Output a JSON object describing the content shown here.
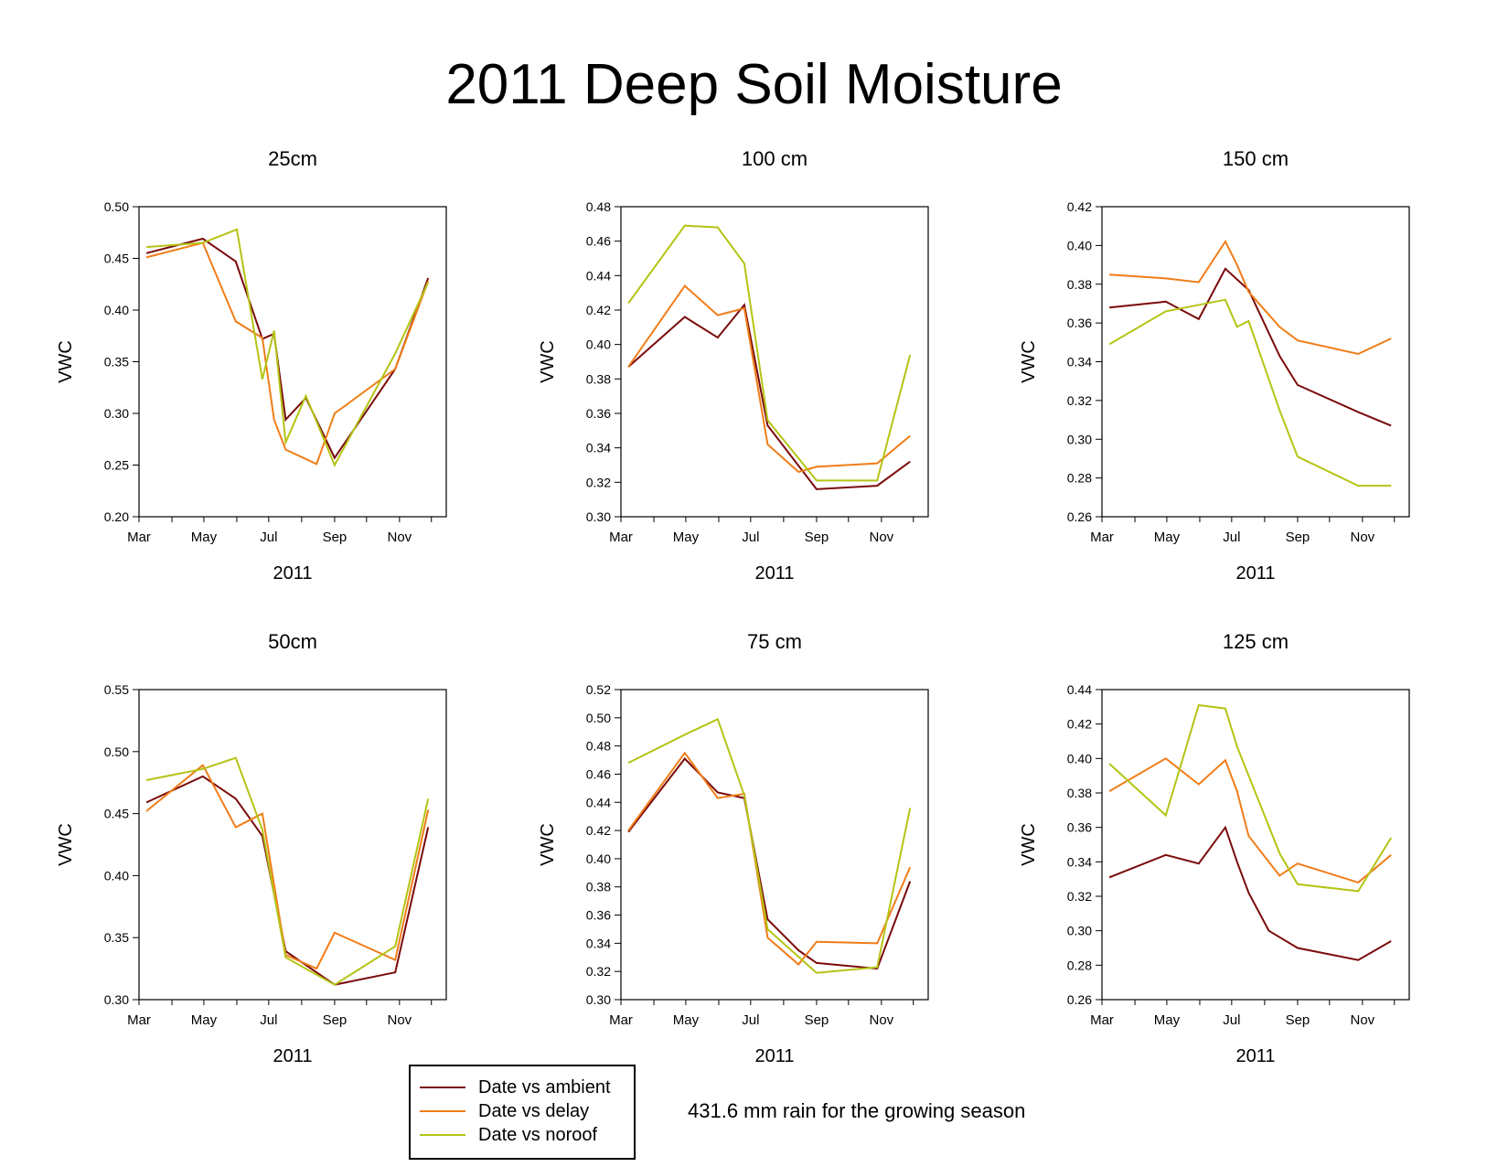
{
  "title": "2011 Deep Soil Moisture",
  "note": "431.6 mm rain for the growing season",
  "colors": {
    "ambient": "#7a0a0a",
    "delay": "#f07d18",
    "noroof": "#b4c414"
  },
  "legend": [
    {
      "label": "Date vs ambient",
      "color": "#7a0a0a"
    },
    {
      "label": "Date vs delay",
      "color": "#f07d18"
    },
    {
      "label": "Date vs noroof",
      "color": "#b4c414"
    }
  ],
  "chart_data": [
    {
      "type": "line",
      "panel": "top-left",
      "title": "25cm",
      "xlabel": "2011",
      "ylabel": "VWC",
      "xticks": [
        "Mar",
        "May",
        "Jul",
        "Sep",
        "Nov"
      ],
      "xlim": [
        "2011-03-01",
        "2011-12-15"
      ],
      "ylim": [
        0.2,
        0.5
      ],
      "yticks": [
        "0.20",
        "0.25",
        "0.30",
        "0.35",
        "0.40",
        "0.45",
        "0.50"
      ],
      "series": [
        {
          "name": "Date vs ambient",
          "color": "#7a0a0a",
          "points": [
            [
              "2011-03-08",
              0.455
            ],
            [
              "2011-04-30",
              0.469
            ],
            [
              "2011-05-31",
              0.447
            ],
            [
              "2011-06-25",
              0.372
            ],
            [
              "2011-07-06",
              0.377
            ],
            [
              "2011-07-17",
              0.294
            ],
            [
              "2011-08-05",
              0.315
            ],
            [
              "2011-09-01",
              0.257
            ],
            [
              "2011-10-28",
              0.343
            ],
            [
              "2011-11-28",
              0.431
            ]
          ]
        },
        {
          "name": "Date vs delay",
          "color": "#f07d18",
          "points": [
            [
              "2011-03-08",
              0.451
            ],
            [
              "2011-04-30",
              0.465
            ],
            [
              "2011-05-31",
              0.389
            ],
            [
              "2011-06-25",
              0.373
            ],
            [
              "2011-07-06",
              0.294
            ],
            [
              "2011-07-17",
              0.265
            ],
            [
              "2011-08-15",
              0.251
            ],
            [
              "2011-09-01",
              0.3
            ],
            [
              "2011-10-28",
              0.343
            ],
            [
              "2011-11-28",
              0.428
            ]
          ]
        },
        {
          "name": "Date vs noroof",
          "color": "#b4c414",
          "points": [
            [
              "2011-03-08",
              0.461
            ],
            [
              "2011-04-30",
              0.465
            ],
            [
              "2011-06-01",
              0.478
            ],
            [
              "2011-06-25",
              0.333
            ],
            [
              "2011-07-06",
              0.38
            ],
            [
              "2011-07-17",
              0.272
            ],
            [
              "2011-08-05",
              0.317
            ],
            [
              "2011-09-01",
              0.25
            ],
            [
              "2011-10-28",
              0.358
            ],
            [
              "2011-11-28",
              0.427
            ]
          ]
        }
      ]
    },
    {
      "type": "line",
      "panel": "top-middle",
      "title": "100 cm",
      "xlabel": "2011",
      "ylabel": "VWC",
      "xticks": [
        "Mar",
        "May",
        "Jul",
        "Sep",
        "Nov"
      ],
      "xlim": [
        "2011-03-01",
        "2011-12-15"
      ],
      "ylim": [
        0.3,
        0.48
      ],
      "yticks": [
        "0.30",
        "0.32",
        "0.34",
        "0.36",
        "0.38",
        "0.40",
        "0.42",
        "0.44",
        "0.46",
        "0.48"
      ],
      "series": [
        {
          "name": "Date vs ambient",
          "color": "#7a0a0a",
          "points": [
            [
              "2011-03-08",
              0.387
            ],
            [
              "2011-04-30",
              0.416
            ],
            [
              "2011-05-31",
              0.404
            ],
            [
              "2011-06-25",
              0.423
            ],
            [
              "2011-07-17",
              0.353
            ],
            [
              "2011-09-01",
              0.316
            ],
            [
              "2011-10-28",
              0.318
            ],
            [
              "2011-11-28",
              0.332
            ]
          ]
        },
        {
          "name": "Date vs delay",
          "color": "#f07d18",
          "points": [
            [
              "2011-03-08",
              0.387
            ],
            [
              "2011-04-30",
              0.434
            ],
            [
              "2011-05-31",
              0.417
            ],
            [
              "2011-06-25",
              0.421
            ],
            [
              "2011-07-17",
              0.342
            ],
            [
              "2011-08-15",
              0.326
            ],
            [
              "2011-09-01",
              0.329
            ],
            [
              "2011-10-28",
              0.331
            ],
            [
              "2011-11-28",
              0.347
            ]
          ]
        },
        {
          "name": "Date vs noroof",
          "color": "#b4c414",
          "points": [
            [
              "2011-03-08",
              0.424
            ],
            [
              "2011-04-30",
              0.469
            ],
            [
              "2011-05-31",
              0.468
            ],
            [
              "2011-06-25",
              0.447
            ],
            [
              "2011-07-17",
              0.356
            ],
            [
              "2011-09-01",
              0.321
            ],
            [
              "2011-10-28",
              0.321
            ],
            [
              "2011-11-28",
              0.394
            ]
          ]
        }
      ]
    },
    {
      "type": "line",
      "panel": "top-right",
      "title": "150 cm",
      "xlabel": "2011",
      "ylabel": "VWC",
      "xticks": [
        "Mar",
        "May",
        "Jul",
        "Sep",
        "Nov"
      ],
      "xlim": [
        "2011-03-01",
        "2011-12-15"
      ],
      "ylim": [
        0.26,
        0.42
      ],
      "yticks": [
        "0.26",
        "0.28",
        "0.30",
        "0.32",
        "0.34",
        "0.36",
        "0.38",
        "0.40",
        "0.42"
      ],
      "series": [
        {
          "name": "Date vs ambient",
          "color": "#7a0a0a",
          "points": [
            [
              "2011-03-08",
              0.368
            ],
            [
              "2011-04-30",
              0.371
            ],
            [
              "2011-05-31",
              0.362
            ],
            [
              "2011-06-25",
              0.388
            ],
            [
              "2011-07-17",
              0.377
            ],
            [
              "2011-08-15",
              0.343
            ],
            [
              "2011-09-01",
              0.328
            ],
            [
              "2011-10-28",
              0.314
            ],
            [
              "2011-11-28",
              0.307
            ]
          ]
        },
        {
          "name": "Date vs delay",
          "color": "#f07d18",
          "points": [
            [
              "2011-03-08",
              0.385
            ],
            [
              "2011-04-30",
              0.383
            ],
            [
              "2011-05-31",
              0.381
            ],
            [
              "2011-06-25",
              0.402
            ],
            [
              "2011-07-06",
              0.39
            ],
            [
              "2011-07-17",
              0.376
            ],
            [
              "2011-08-15",
              0.358
            ],
            [
              "2011-09-01",
              0.351
            ],
            [
              "2011-10-28",
              0.344
            ],
            [
              "2011-11-28",
              0.352
            ]
          ]
        },
        {
          "name": "Date vs noroof",
          "color": "#b4c414",
          "points": [
            [
              "2011-03-08",
              0.349
            ],
            [
              "2011-04-30",
              0.366
            ],
            [
              "2011-06-25",
              0.372
            ],
            [
              "2011-07-06",
              0.358
            ],
            [
              "2011-07-17",
              0.361
            ],
            [
              "2011-08-15",
              0.315
            ],
            [
              "2011-09-01",
              0.291
            ],
            [
              "2011-10-28",
              0.276
            ],
            [
              "2011-11-28",
              0.276
            ]
          ]
        }
      ]
    },
    {
      "type": "line",
      "panel": "bottom-left",
      "title": "50cm",
      "xlabel": "2011",
      "ylabel": "VWC",
      "xticks": [
        "Mar",
        "May",
        "Jul",
        "Sep",
        "Nov"
      ],
      "xlim": [
        "2011-03-01",
        "2011-12-15"
      ],
      "ylim": [
        0.3,
        0.55
      ],
      "yticks": [
        "0.30",
        "0.35",
        "0.40",
        "0.45",
        "0.50",
        "0.55"
      ],
      "series": [
        {
          "name": "Date vs ambient",
          "color": "#7a0a0a",
          "points": [
            [
              "2011-03-08",
              0.459
            ],
            [
              "2011-04-30",
              0.48
            ],
            [
              "2011-05-31",
              0.462
            ],
            [
              "2011-06-25",
              0.432
            ],
            [
              "2011-07-17",
              0.339
            ],
            [
              "2011-09-01",
              0.312
            ],
            [
              "2011-10-28",
              0.322
            ],
            [
              "2011-11-28",
              0.439
            ]
          ]
        },
        {
          "name": "Date vs delay",
          "color": "#f07d18",
          "points": [
            [
              "2011-03-08",
              0.452
            ],
            [
              "2011-04-30",
              0.489
            ],
            [
              "2011-05-31",
              0.439
            ],
            [
              "2011-06-25",
              0.45
            ],
            [
              "2011-07-17",
              0.336
            ],
            [
              "2011-08-15",
              0.325
            ],
            [
              "2011-09-01",
              0.354
            ],
            [
              "2011-10-28",
              0.332
            ],
            [
              "2011-11-28",
              0.453
            ]
          ]
        },
        {
          "name": "Date vs noroof",
          "color": "#b4c414",
          "points": [
            [
              "2011-03-08",
              0.477
            ],
            [
              "2011-04-30",
              0.486
            ],
            [
              "2011-05-31",
              0.495
            ],
            [
              "2011-06-25",
              0.437
            ],
            [
              "2011-07-17",
              0.334
            ],
            [
              "2011-09-01",
              0.312
            ],
            [
              "2011-10-28",
              0.343
            ],
            [
              "2011-11-28",
              0.462
            ]
          ]
        }
      ]
    },
    {
      "type": "line",
      "panel": "bottom-middle",
      "title": "75 cm",
      "xlabel": "2011",
      "ylabel": "VWC",
      "xticks": [
        "Mar",
        "May",
        "Jul",
        "Sep",
        "Nov"
      ],
      "xlim": [
        "2011-03-01",
        "2011-12-15"
      ],
      "ylim": [
        0.3,
        0.52
      ],
      "yticks": [
        "0.30",
        "0.32",
        "0.34",
        "0.36",
        "0.38",
        "0.40",
        "0.42",
        "0.44",
        "0.46",
        "0.48",
        "0.50",
        "0.52"
      ],
      "series": [
        {
          "name": "Date vs ambient",
          "color": "#7a0a0a",
          "points": [
            [
              "2011-03-08",
              0.419
            ],
            [
              "2011-04-30",
              0.471
            ],
            [
              "2011-05-31",
              0.447
            ],
            [
              "2011-06-25",
              0.443
            ],
            [
              "2011-07-17",
              0.357
            ],
            [
              "2011-08-15",
              0.335
            ],
            [
              "2011-09-01",
              0.326
            ],
            [
              "2011-10-28",
              0.322
            ],
            [
              "2011-11-28",
              0.384
            ]
          ]
        },
        {
          "name": "Date vs delay",
          "color": "#f07d18",
          "points": [
            [
              "2011-03-08",
              0.42
            ],
            [
              "2011-04-30",
              0.475
            ],
            [
              "2011-05-31",
              0.443
            ],
            [
              "2011-06-25",
              0.446
            ],
            [
              "2011-07-17",
              0.344
            ],
            [
              "2011-08-15",
              0.325
            ],
            [
              "2011-09-01",
              0.341
            ],
            [
              "2011-10-28",
              0.34
            ],
            [
              "2011-11-28",
              0.394
            ]
          ]
        },
        {
          "name": "Date vs noroof",
          "color": "#b4c414",
          "points": [
            [
              "2011-03-08",
              0.468
            ],
            [
              "2011-04-30",
              0.488
            ],
            [
              "2011-05-31",
              0.499
            ],
            [
              "2011-06-25",
              0.445
            ],
            [
              "2011-07-17",
              0.35
            ],
            [
              "2011-09-01",
              0.319
            ],
            [
              "2011-10-28",
              0.323
            ],
            [
              "2011-11-28",
              0.436
            ]
          ]
        }
      ]
    },
    {
      "type": "line",
      "panel": "bottom-right",
      "title": "125 cm",
      "xlabel": "2011",
      "ylabel": "VWC",
      "xticks": [
        "Mar",
        "May",
        "Jul",
        "Sep",
        "Nov"
      ],
      "xlim": [
        "2011-03-01",
        "2011-12-15"
      ],
      "ylim": [
        0.26,
        0.44
      ],
      "yticks": [
        "0.26",
        "0.28",
        "0.30",
        "0.32",
        "0.34",
        "0.36",
        "0.38",
        "0.40",
        "0.42",
        "0.44"
      ],
      "series": [
        {
          "name": "Date vs ambient",
          "color": "#7a0a0a",
          "points": [
            [
              "2011-03-08",
              0.331
            ],
            [
              "2011-04-30",
              0.344
            ],
            [
              "2011-05-31",
              0.339
            ],
            [
              "2011-06-25",
              0.36
            ],
            [
              "2011-07-06",
              0.34
            ],
            [
              "2011-07-17",
              0.322
            ],
            [
              "2011-08-05",
              0.3
            ],
            [
              "2011-09-01",
              0.29
            ],
            [
              "2011-10-28",
              0.283
            ],
            [
              "2011-11-28",
              0.294
            ]
          ]
        },
        {
          "name": "Date vs delay",
          "color": "#f07d18",
          "points": [
            [
              "2011-03-08",
              0.381
            ],
            [
              "2011-04-30",
              0.4
            ],
            [
              "2011-05-31",
              0.385
            ],
            [
              "2011-06-25",
              0.399
            ],
            [
              "2011-07-06",
              0.381
            ],
            [
              "2011-07-17",
              0.355
            ],
            [
              "2011-08-15",
              0.332
            ],
            [
              "2011-09-01",
              0.339
            ],
            [
              "2011-10-28",
              0.328
            ],
            [
              "2011-11-28",
              0.344
            ]
          ]
        },
        {
          "name": "Date vs noroof",
          "color": "#b4c414",
          "points": [
            [
              "2011-03-08",
              0.397
            ],
            [
              "2011-04-30",
              0.367
            ],
            [
              "2011-05-31",
              0.431
            ],
            [
              "2011-06-25",
              0.429
            ],
            [
              "2011-07-06",
              0.407
            ],
            [
              "2011-08-15",
              0.345
            ],
            [
              "2011-09-01",
              0.327
            ],
            [
              "2011-10-28",
              0.323
            ],
            [
              "2011-11-28",
              0.354
            ]
          ]
        }
      ]
    }
  ]
}
